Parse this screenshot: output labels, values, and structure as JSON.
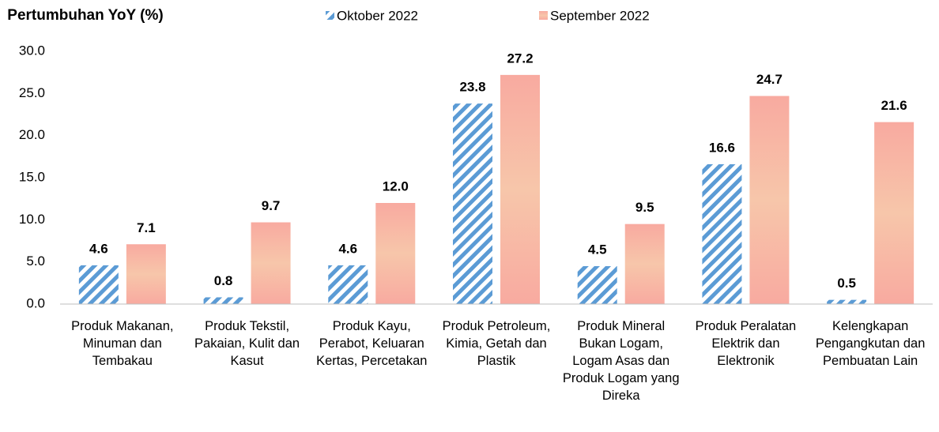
{
  "chart_data": {
    "type": "bar",
    "y_label": "Pertumbuhan YoY (%)",
    "categories": [
      "Produk Makanan, Minuman dan Tembakau",
      "Produk Tekstil, Pakaian, Kulit dan Kasut",
      "Produk Kayu, Perabot, Keluaran Kertas, Percetakan",
      "Produk Petroleum, Kimia, Getah dan Plastik",
      "Produk Mineral Bukan Logam, Logam Asas dan Produk Logam yang Direka",
      "Produk Peralatan Elektrik dan Elektronik",
      "Kelengkapan Pengangkutan dan Pembuatan Lain"
    ],
    "series": [
      {
        "name": "Oktober 2022",
        "color": "#5b9bd5",
        "label_color": "#44546a",
        "pattern": "hatch",
        "values": [
          4.6,
          0.8,
          4.6,
          23.8,
          4.5,
          16.6,
          0.5
        ],
        "value_labels": [
          "4.6",
          "0.8",
          "4.6",
          "23.8",
          "4.5",
          "16.6",
          "0.5"
        ]
      },
      {
        "name": "September 2022",
        "color": "#f8aaa0",
        "label_color": "#c00000",
        "pattern": "gradient",
        "values": [
          7.1,
          9.7,
          12.0,
          27.2,
          9.5,
          24.7,
          21.6
        ],
        "value_labels": [
          "7.1",
          "9.7",
          "12.0",
          "27.2",
          "9.5",
          "24.7",
          "21.6"
        ]
      }
    ],
    "ylim": [
      0,
      30
    ],
    "yticks": [
      {
        "value": 0,
        "label": "0.0"
      },
      {
        "value": 5,
        "label": "5.0"
      },
      {
        "value": 10,
        "label": "10.0"
      },
      {
        "value": 15,
        "label": "15.0"
      },
      {
        "value": 20,
        "label": "20.0"
      },
      {
        "value": 25,
        "label": "25.0"
      },
      {
        "value": 30,
        "label": "30.0"
      }
    ],
    "grid": false,
    "legend": "top"
  }
}
